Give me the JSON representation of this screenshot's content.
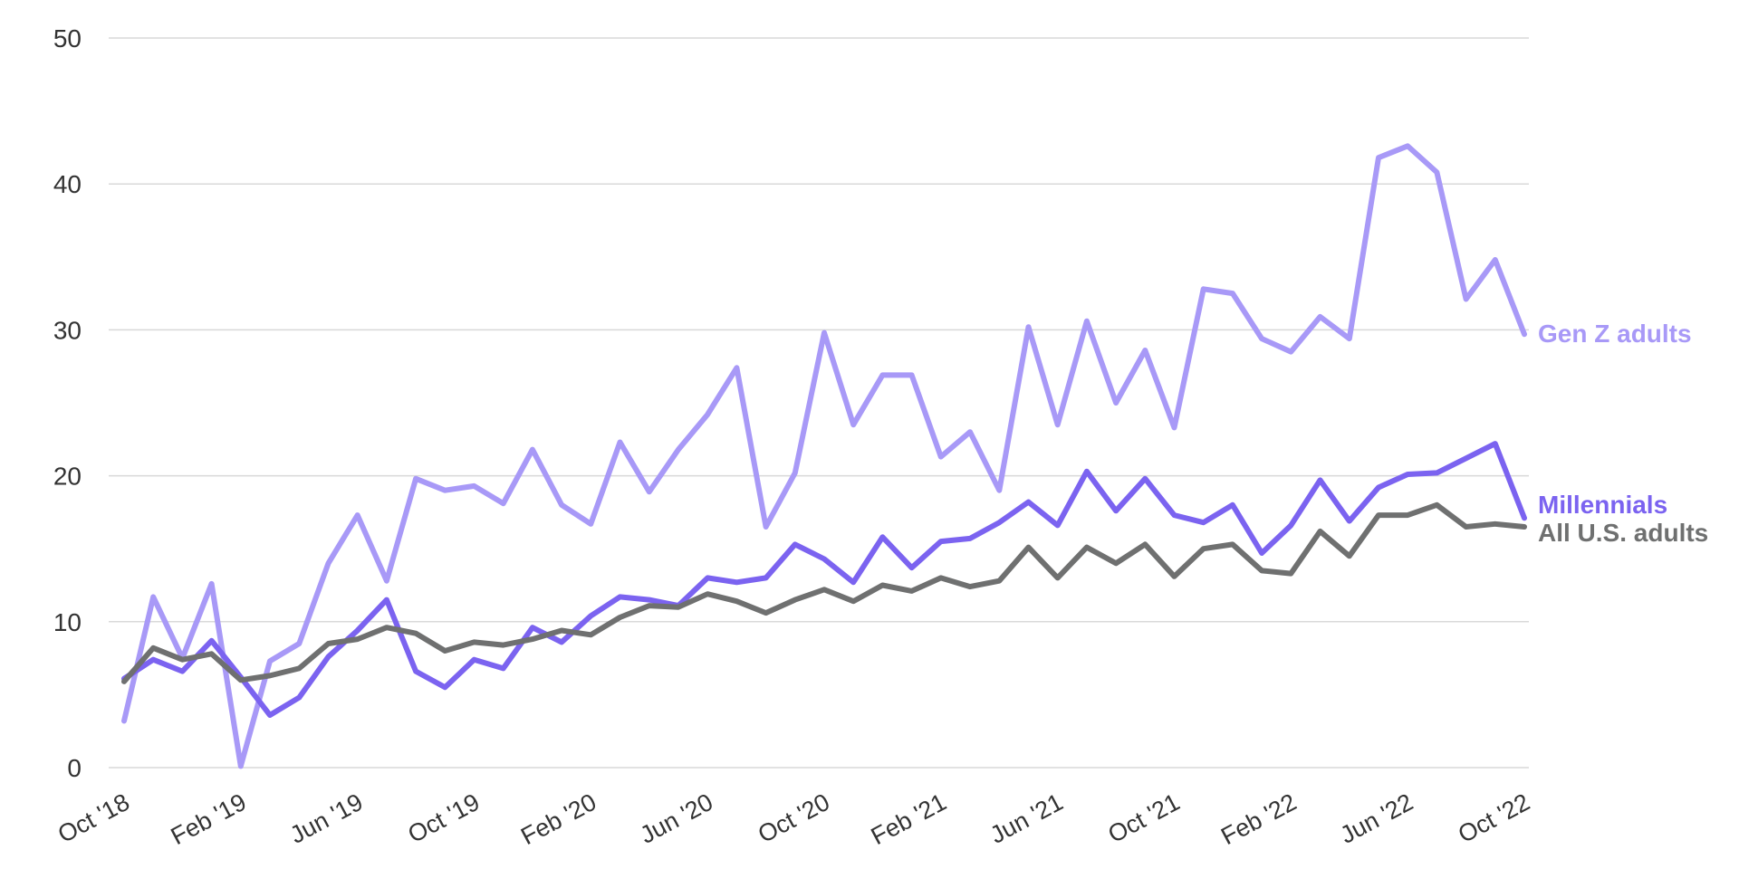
{
  "chart_data": {
    "type": "line",
    "title": "",
    "xlabel": "",
    "ylabel": "",
    "ylim": [
      0,
      50
    ],
    "y_ticks": [
      0,
      10,
      20,
      30,
      40,
      50
    ],
    "grid": "horizontal",
    "legend": "inline-right",
    "x_tick_labels": [
      "Oct '18",
      "Feb '19",
      "Jun '19",
      "Oct '19",
      "Feb '20",
      "Jun '20",
      "Oct '20",
      "Feb '21",
      "Jun '21",
      "Oct '21",
      "Feb '22",
      "Jun '22",
      "Oct '22"
    ],
    "x": [
      "Oct '18",
      "Nov '18",
      "Dec '18",
      "Jan '19",
      "Feb '19",
      "Mar '19",
      "Apr '19",
      "May '19",
      "Jun '19",
      "Jul '19",
      "Aug '19",
      "Sep '19",
      "Oct '19",
      "Nov '19",
      "Dec '19",
      "Jan '20",
      "Feb '20",
      "Mar '20",
      "Apr '20",
      "May '20",
      "Jun '20",
      "Jul '20",
      "Aug '20",
      "Sep '20",
      "Oct '20",
      "Nov '20",
      "Dec '20",
      "Jan '21",
      "Feb '21",
      "Mar '21",
      "Apr '21",
      "May '21",
      "Jun '21",
      "Jul '21",
      "Aug '21",
      "Sep '21",
      "Oct '21",
      "Nov '21",
      "Dec '21",
      "Jan '22",
      "Feb '22",
      "Mar '22",
      "Apr '22",
      "May '22",
      "Jun '22",
      "Jul '22",
      "Aug '22",
      "Sep '22",
      "Oct '22"
    ],
    "series": [
      {
        "name": "Gen Z adults",
        "color": "#a899f7",
        "values": [
          3.2,
          11.7,
          7.5,
          12.6,
          0.1,
          7.3,
          8.5,
          14.0,
          17.3,
          12.8,
          19.8,
          19.0,
          19.3,
          18.1,
          21.8,
          18.0,
          16.7,
          22.3,
          18.9,
          21.8,
          24.2,
          27.4,
          16.5,
          20.2,
          29.8,
          23.5,
          26.9,
          26.9,
          21.3,
          23.0,
          19.0,
          30.2,
          23.5,
          30.6,
          25.0,
          28.6,
          23.3,
          32.8,
          32.5,
          29.4,
          28.5,
          30.9,
          29.4,
          41.8,
          42.6,
          40.8,
          32.1,
          34.8,
          29.7
        ]
      },
      {
        "name": "Millennials",
        "color": "#7b63f0",
        "values": [
          6.1,
          7.4,
          6.6,
          8.7,
          6.2,
          3.6,
          4.8,
          7.6,
          9.4,
          11.5,
          6.6,
          5.5,
          7.4,
          6.8,
          9.6,
          8.6,
          10.4,
          11.7,
          11.5,
          11.1,
          13.0,
          12.7,
          13.0,
          15.3,
          14.3,
          12.7,
          15.8,
          13.7,
          15.5,
          15.7,
          16.8,
          18.2,
          16.6,
          20.3,
          17.6,
          19.8,
          17.3,
          16.8,
          18.0,
          14.7,
          16.6,
          19.7,
          16.9,
          19.2,
          20.1,
          20.2,
          21.2,
          22.2,
          17.1
        ]
      },
      {
        "name": "All U.S. adults",
        "color": "#6f7070",
        "values": [
          5.9,
          8.2,
          7.4,
          7.8,
          6.0,
          6.3,
          6.8,
          8.5,
          8.8,
          9.6,
          9.2,
          8.0,
          8.6,
          8.4,
          8.8,
          9.4,
          9.1,
          10.3,
          11.1,
          11.0,
          11.9,
          11.4,
          10.6,
          11.5,
          12.2,
          11.4,
          12.5,
          12.1,
          13.0,
          12.4,
          12.8,
          15.1,
          13.0,
          15.1,
          14.0,
          15.3,
          13.1,
          15.0,
          15.3,
          13.5,
          13.3,
          16.2,
          14.5,
          17.3,
          17.3,
          18.0,
          16.5,
          16.7,
          16.5
        ]
      }
    ]
  }
}
